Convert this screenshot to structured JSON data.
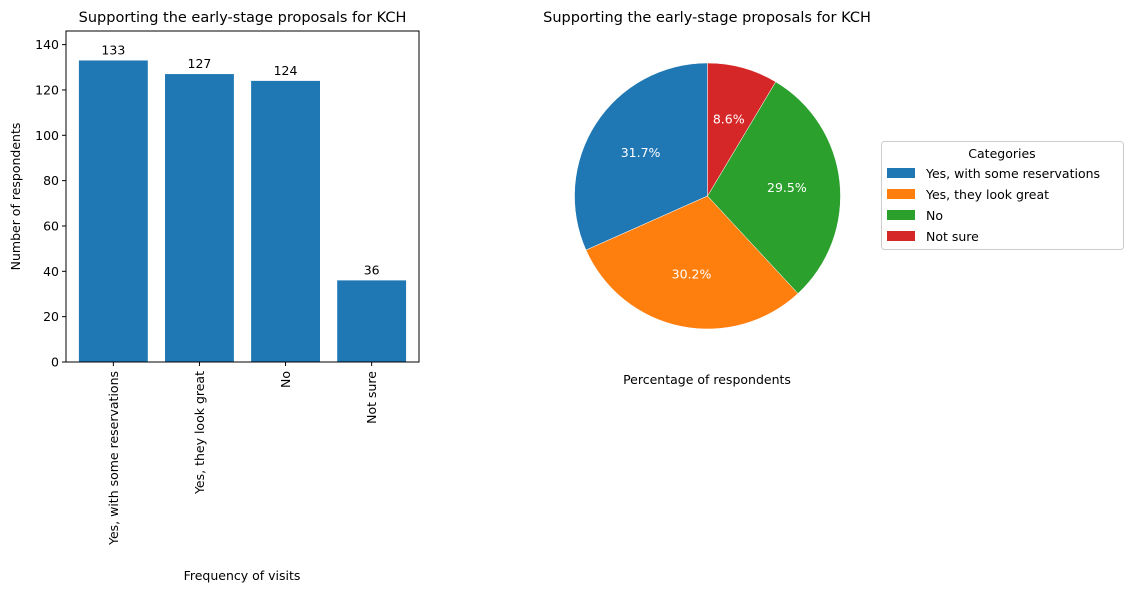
{
  "chart_data": [
    {
      "type": "bar",
      "title": "Supporting the early-stage proposals for KCH",
      "xlabel": "Frequency of visits",
      "ylabel": "Number of respondents",
      "categories": [
        "Yes, with some reservations",
        "Yes, they look great",
        "No",
        "Not sure"
      ],
      "values": [
        133,
        127,
        124,
        36
      ],
      "data_labels": [
        "133",
        "127",
        "124",
        "36"
      ],
      "ylim": [
        0,
        146
      ],
      "yticks": [
        0,
        20,
        40,
        60,
        80,
        100,
        120,
        140
      ],
      "color": "#1f77b4",
      "grid": false
    },
    {
      "type": "pie",
      "title": "Supporting the early-stage proposals for KCH",
      "xlabel": "Percentage of respondents",
      "labels": [
        "Yes, with some reservations",
        "Yes, they look great",
        "No",
        "Not sure"
      ],
      "values": [
        133,
        127,
        124,
        36
      ],
      "percent_labels": [
        "31.7%",
        "30.2%",
        "29.5%",
        "8.6%"
      ],
      "colors": [
        "#1f77b4",
        "#ff7f0e",
        "#2ca02c",
        "#d62728"
      ],
      "legend": {
        "title": "Categories",
        "placement": "right"
      }
    }
  ]
}
